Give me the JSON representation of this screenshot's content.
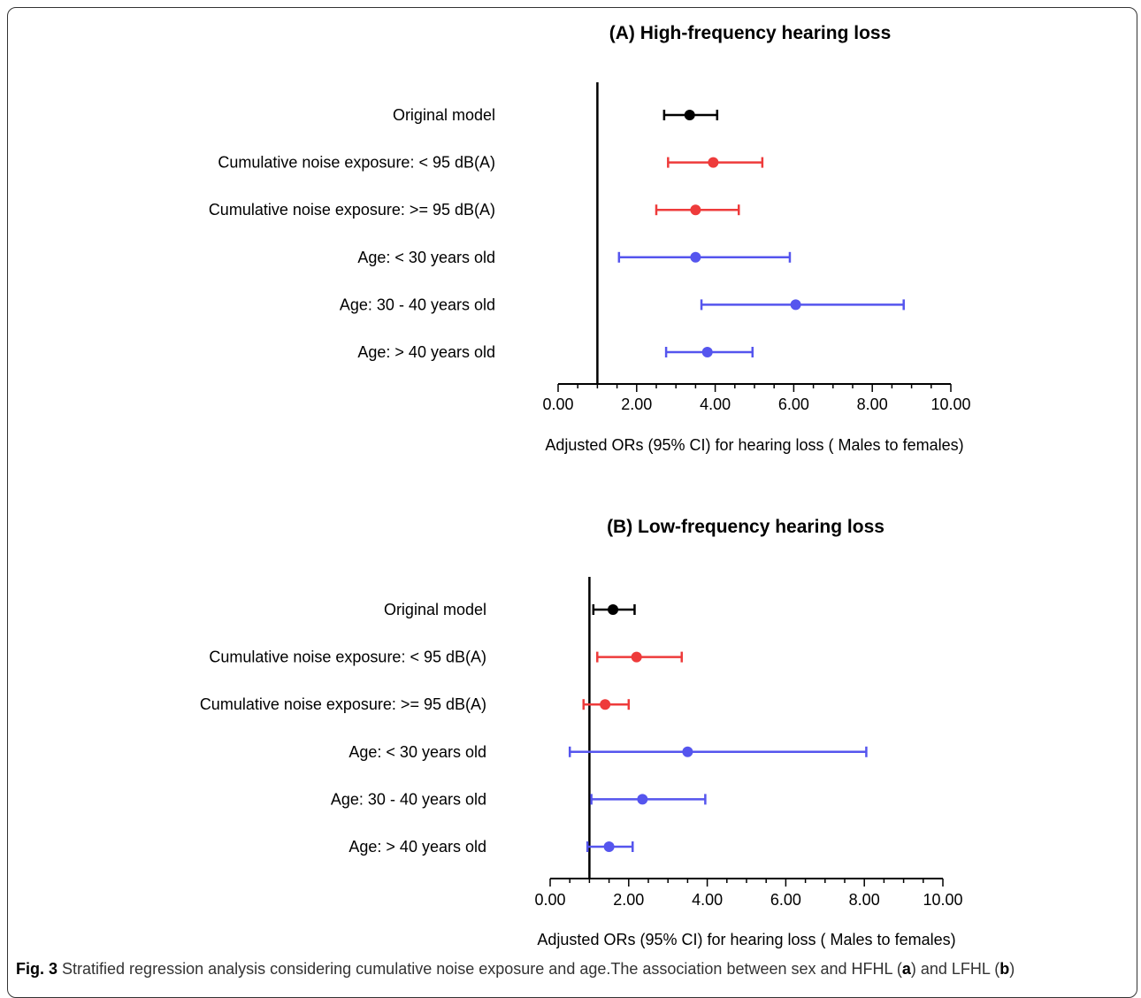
{
  "chart_data": [
    {
      "type": "forest",
      "title": "(A) High-frequency hearing loss",
      "xlabel": "Adjusted ORs (95% CI) for hearing loss ( Males to females)",
      "xlim": [
        0,
        10
      ],
      "xticks": [
        "0.00",
        "2.00",
        "4.00",
        "6.00",
        "8.00",
        "10.00"
      ],
      "reference_line": 1,
      "rows": [
        {
          "label": "Original model",
          "or": 3.35,
          "lower": 2.7,
          "upper": 4.05,
          "color": "#000000"
        },
        {
          "label": "Cumulative noise exposure: < 95 dB(A)",
          "or": 3.95,
          "lower": 2.8,
          "upper": 5.2,
          "color": "#ee3b3b"
        },
        {
          "label": "Cumulative noise exposure: >= 95 dB(A)",
          "or": 3.5,
          "lower": 2.5,
          "upper": 4.6,
          "color": "#ee3b3b"
        },
        {
          "label": "Age: < 30 years old",
          "or": 3.5,
          "lower": 1.55,
          "upper": 5.9,
          "color": "#5555ee"
        },
        {
          "label": "Age: 30 - 40 years old",
          "or": 6.05,
          "lower": 3.65,
          "upper": 8.8,
          "color": "#5555ee"
        },
        {
          "label": "Age: > 40 years old",
          "or": 3.8,
          "lower": 2.75,
          "upper": 4.95,
          "color": "#5555ee"
        }
      ]
    },
    {
      "type": "forest",
      "title": "(B) Low-frequency hearing loss",
      "xlabel": "Adjusted ORs (95% CI) for hearing loss ( Males to females)",
      "xlim": [
        0,
        10
      ],
      "xticks": [
        "0.00",
        "2.00",
        "4.00",
        "6.00",
        "8.00",
        "10.00"
      ],
      "reference_line": 1,
      "rows": [
        {
          "label": "Original model",
          "or": 1.6,
          "lower": 1.1,
          "upper": 2.15,
          "color": "#000000"
        },
        {
          "label": "Cumulative noise exposure: < 95 dB(A)",
          "or": 2.2,
          "lower": 1.2,
          "upper": 3.35,
          "color": "#ee3b3b"
        },
        {
          "label": "Cumulative noise exposure: >= 95 dB(A)",
          "or": 1.4,
          "lower": 0.85,
          "upper": 2.0,
          "color": "#ee3b3b"
        },
        {
          "label": "Age: < 30 years old",
          "or": 3.5,
          "lower": 0.5,
          "upper": 8.05,
          "color": "#5555ee"
        },
        {
          "label": "Age: 30 - 40 years old",
          "or": 2.35,
          "lower": 1.05,
          "upper": 3.95,
          "color": "#5555ee"
        },
        {
          "label": "Age: > 40 years old",
          "or": 1.5,
          "lower": 0.95,
          "upper": 2.1,
          "color": "#5555ee"
        }
      ]
    }
  ],
  "caption": {
    "fig_label": "Fig. 3",
    "text_1": " Stratified regression analysis considering cumulative noise exposure and age.The association between sex and HFHL (",
    "a": "a",
    "text_2": ") and LFHL (",
    "b": "b",
    "text_3": ")"
  }
}
